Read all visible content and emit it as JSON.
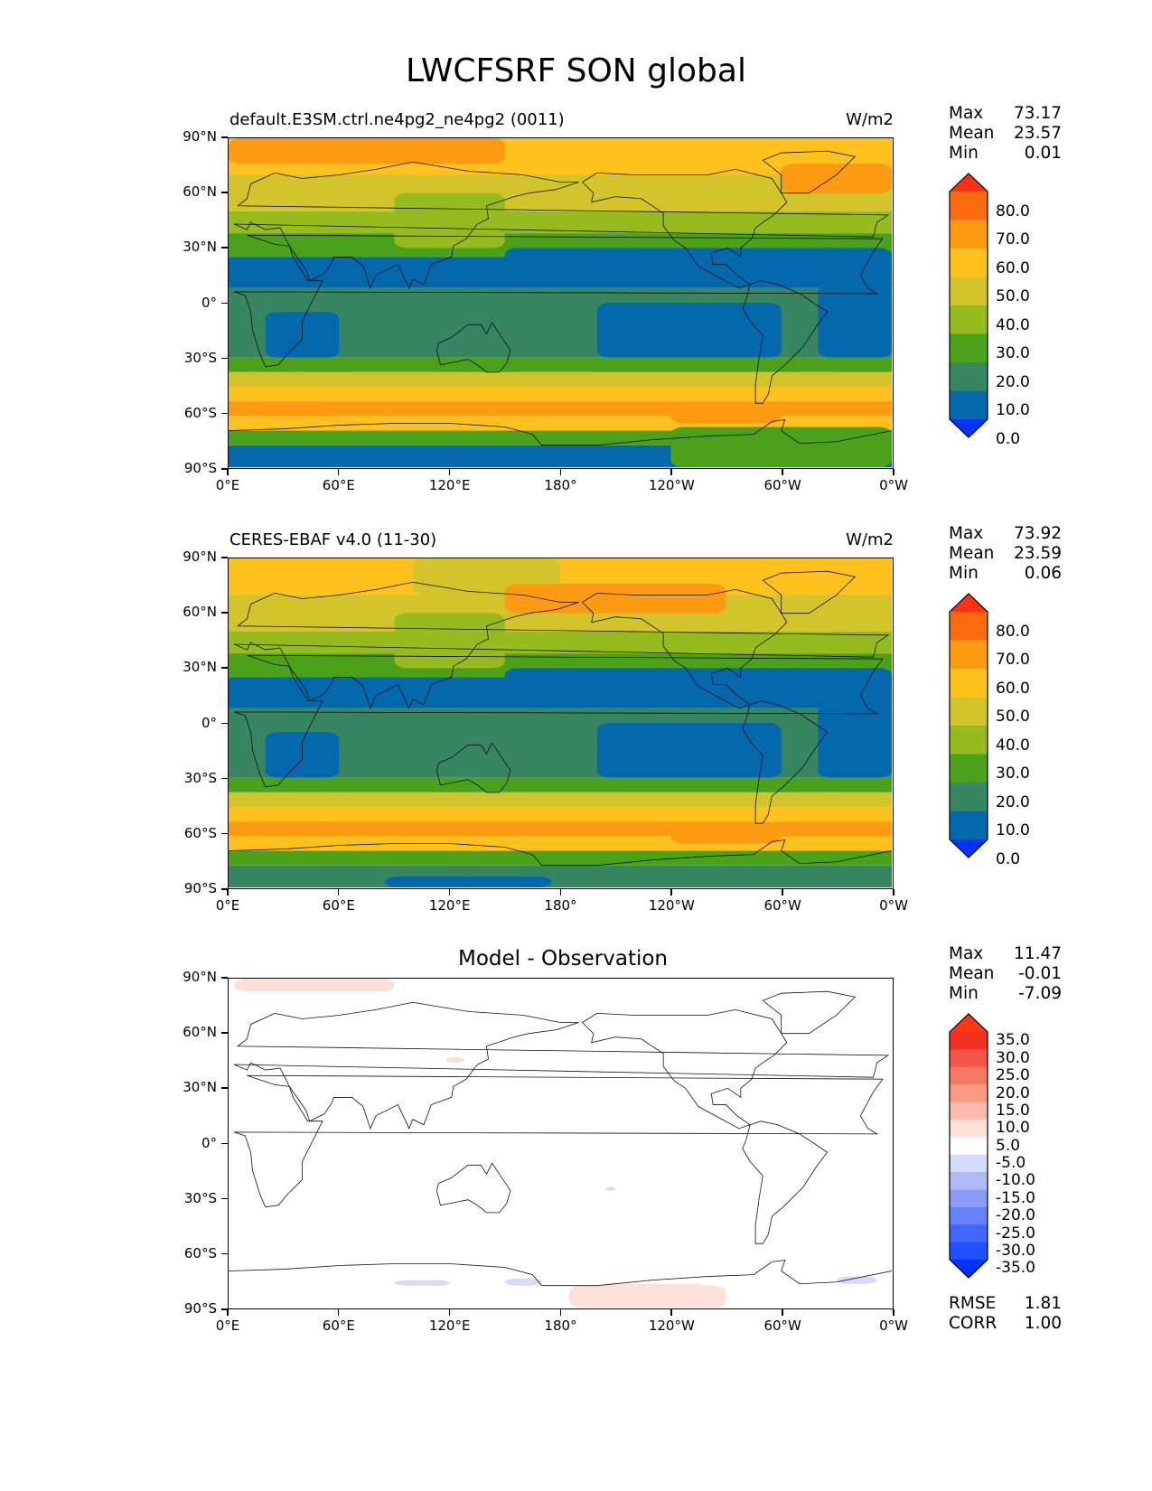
{
  "title": "LWCFSRF SON global",
  "lat_ticks": [
    "90°N",
    "60°N",
    "30°N",
    "0°",
    "30°S",
    "60°S",
    "90°S"
  ],
  "lon_ticks": [
    "0°E",
    "60°E",
    "120°E",
    "180°",
    "120°W",
    "60°W",
    "0°W"
  ],
  "colors": {
    "abs_levels": [
      "#0432ff",
      "#0468ad",
      "#378561",
      "#4ba11a",
      "#95bb1e",
      "#d2c42a",
      "#fec11d",
      "#fc9b12",
      "#fa6b0f",
      "#fe3015"
    ],
    "diff_levels": [
      "#0532ff",
      "#2050fe",
      "#4166fc",
      "#6580f8",
      "#8a9df6",
      "#aeb9f6",
      "#d4dbfc",
      "#ffffff",
      "#fde0d8",
      "#fcbcad",
      "#fb9983",
      "#f67764",
      "#f55547",
      "#f32f22",
      "#fc3712"
    ]
  },
  "panels": [
    {
      "left_title": "default.E3SM.ctrl.ne4pg2_ne4pg2 (0011)",
      "units": "W/m2",
      "center_title": "",
      "stats": {
        "max_label": "Max",
        "max": "73.17",
        "mean_label": "Mean",
        "mean": "23.57",
        "min_label": "Min",
        "min": "0.01"
      },
      "colorbar_labels": [
        "80.0",
        "70.0",
        "60.0",
        "50.0",
        "40.0",
        "30.0",
        "20.0",
        "10.0",
        "0.0"
      ],
      "bands": [
        {
          "lat_top": 90,
          "lat_bottom": 70,
          "level": 6
        },
        {
          "lat_top": 70,
          "lat_bottom": 50,
          "level": 5
        },
        {
          "lat_top": 50,
          "lat_bottom": 38,
          "level": 4
        },
        {
          "lat_top": 38,
          "lat_bottom": 25,
          "level": 3
        },
        {
          "lat_top": 25,
          "lat_bottom": 8,
          "level": 1
        },
        {
          "lat_top": 8,
          "lat_bottom": -30,
          "level": 2
        },
        {
          "lat_top": -30,
          "lat_bottom": -38,
          "level": 3
        },
        {
          "lat_top": -38,
          "lat_bottom": -46,
          "level": 5
        },
        {
          "lat_top": -46,
          "lat_bottom": -54,
          "level": 6
        },
        {
          "lat_top": -54,
          "lat_bottom": -62,
          "level": 7
        },
        {
          "lat_top": -62,
          "lat_bottom": -70,
          "level": 6
        },
        {
          "lat_top": -70,
          "lat_bottom": -78,
          "level": 3
        },
        {
          "lat_top": -78,
          "lat_bottom": -90,
          "level": 1
        }
      ],
      "blobs": [
        {
          "lon1": 0,
          "lon2": 150,
          "lat1": 76,
          "lat2": 90,
          "level": 7
        },
        {
          "lon1": 300,
          "lon2": 360,
          "lat1": 60,
          "lat2": 76,
          "level": 7
        },
        {
          "lon1": 90,
          "lon2": 150,
          "lat1": 30,
          "lat2": 60,
          "level": 4
        },
        {
          "lon1": 150,
          "lon2": 360,
          "lat1": 20,
          "lat2": 30,
          "level": 1
        },
        {
          "lon1": 20,
          "lon2": 60,
          "lat1": -30,
          "lat2": -5,
          "level": 1
        },
        {
          "lon1": 200,
          "lon2": 300,
          "lat1": -30,
          "lat2": 0,
          "level": 1
        },
        {
          "lon1": 320,
          "lon2": 360,
          "lat1": -30,
          "lat2": 10,
          "level": 1
        },
        {
          "lon1": 240,
          "lon2": 300,
          "lat1": -66,
          "lat2": -56,
          "level": 7
        },
        {
          "lon1": 10,
          "lon2": 60,
          "lat1": -62,
          "lat2": -54,
          "level": 7
        },
        {
          "lon1": 240,
          "lon2": 360,
          "lat1": -90,
          "lat2": -68,
          "level": 3
        }
      ]
    },
    {
      "left_title": "CERES-EBAF v4.0 (11-30)",
      "units": "W/m2",
      "center_title": "",
      "stats": {
        "max_label": "Max",
        "max": "73.92",
        "mean_label": "Mean",
        "mean": "23.59",
        "min_label": "Min",
        "min": "0.06"
      },
      "colorbar_labels": [
        "80.0",
        "70.0",
        "60.0",
        "50.0",
        "40.0",
        "30.0",
        "20.0",
        "10.0",
        "0.0"
      ],
      "bands": [
        {
          "lat_top": 90,
          "lat_bottom": 70,
          "level": 6
        },
        {
          "lat_top": 70,
          "lat_bottom": 50,
          "level": 5
        },
        {
          "lat_top": 50,
          "lat_bottom": 38,
          "level": 4
        },
        {
          "lat_top": 38,
          "lat_bottom": 25,
          "level": 3
        },
        {
          "lat_top": 25,
          "lat_bottom": 8,
          "level": 1
        },
        {
          "lat_top": 8,
          "lat_bottom": -30,
          "level": 2
        },
        {
          "lat_top": -30,
          "lat_bottom": -38,
          "level": 3
        },
        {
          "lat_top": -38,
          "lat_bottom": -46,
          "level": 5
        },
        {
          "lat_top": -46,
          "lat_bottom": -54,
          "level": 6
        },
        {
          "lat_top": -54,
          "lat_bottom": -62,
          "level": 7
        },
        {
          "lat_top": -62,
          "lat_bottom": -70,
          "level": 6
        },
        {
          "lat_top": -70,
          "lat_bottom": -78,
          "level": 3
        },
        {
          "lat_top": -78,
          "lat_bottom": -90,
          "level": 2
        }
      ],
      "blobs": [
        {
          "lon1": 0,
          "lon2": 360,
          "lat1": 76,
          "lat2": 90,
          "level": 6
        },
        {
          "lon1": 100,
          "lon2": 180,
          "lat1": 70,
          "lat2": 90,
          "level": 5
        },
        {
          "lon1": 150,
          "lon2": 270,
          "lat1": 60,
          "lat2": 76,
          "level": 7
        },
        {
          "lon1": 90,
          "lon2": 150,
          "lat1": 30,
          "lat2": 60,
          "level": 4
        },
        {
          "lon1": 150,
          "lon2": 360,
          "lat1": 20,
          "lat2": 30,
          "level": 1
        },
        {
          "lon1": 20,
          "lon2": 60,
          "lat1": -30,
          "lat2": -5,
          "level": 1
        },
        {
          "lon1": 200,
          "lon2": 300,
          "lat1": -30,
          "lat2": 0,
          "level": 1
        },
        {
          "lon1": 320,
          "lon2": 360,
          "lat1": -30,
          "lat2": 10,
          "level": 1
        },
        {
          "lon1": 240,
          "lon2": 300,
          "lat1": -66,
          "lat2": -56,
          "level": 7
        },
        {
          "lon1": 10,
          "lon2": 60,
          "lat1": -62,
          "lat2": -54,
          "level": 7
        },
        {
          "lon1": 85,
          "lon2": 175,
          "lat1": -90,
          "lat2": -84,
          "level": 1
        }
      ]
    },
    {
      "left_title": "",
      "units": "",
      "center_title": "Model - Observation",
      "stats": {
        "max_label": "Max",
        "max": "11.47",
        "mean_label": "Mean",
        "mean": "-0.01",
        "min_label": "Min",
        "min": "-7.09"
      },
      "colorbar_labels": [
        "35.0",
        "30.0",
        "25.0",
        "20.0",
        "15.0",
        "10.0",
        "5.0",
        "-5.0",
        "-10.0",
        "-15.0",
        "-20.0",
        "-25.0",
        "-30.0",
        "-35.0"
      ],
      "bottom_stats": {
        "rmse_label": "RMSE",
        "rmse": "1.81",
        "corr_label": "CORR",
        "corr": "1.00"
      },
      "bands": [
        {
          "lat_top": 90,
          "lat_bottom": -90,
          "level": 7
        }
      ],
      "blobs": [
        {
          "lon1": 3,
          "lon2": 90,
          "lat1": 83,
          "lat2": 90,
          "level": 8
        },
        {
          "lon1": 118,
          "lon2": 128,
          "lat1": 44,
          "lat2": 47,
          "level": 8
        },
        {
          "lon1": 185,
          "lon2": 270,
          "lat1": -90,
          "lat2": -78,
          "level": 8
        },
        {
          "lon1": 200,
          "lon2": 260,
          "lat1": -82,
          "lat2": -77,
          "level": 8
        },
        {
          "lon1": 90,
          "lon2": 120,
          "lat1": -78,
          "lat2": -75,
          "level": 6
        },
        {
          "lon1": 150,
          "lon2": 170,
          "lat1": -78,
          "lat2": -74,
          "level": 6
        },
        {
          "lon1": 330,
          "lon2": 352,
          "lat1": -77,
          "lat2": -73,
          "level": 6
        },
        {
          "lon1": 205,
          "lon2": 210,
          "lat1": -26,
          "lat2": -24,
          "level": 6
        }
      ]
    }
  ]
}
